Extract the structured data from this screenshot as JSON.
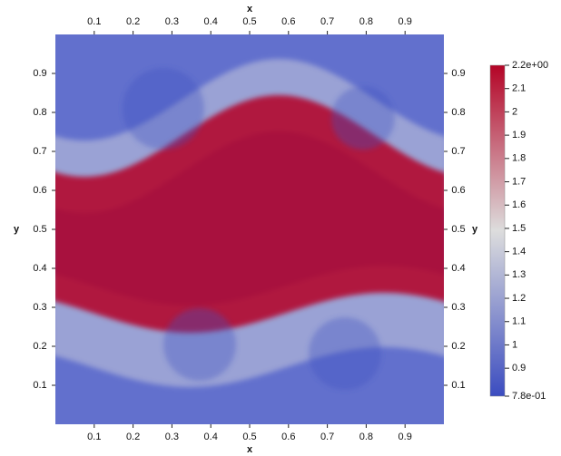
{
  "chart_data": {
    "type": "field",
    "xlabel": "x",
    "ylabel": "y",
    "xlim": [
      0,
      1
    ],
    "ylim": [
      0,
      1
    ],
    "xticks": [
      0.1,
      0.2,
      0.3,
      0.4,
      0.5,
      0.6,
      0.7,
      0.8,
      0.9
    ],
    "yticks": [
      0.1,
      0.2,
      0.3,
      0.4,
      0.5,
      0.6,
      0.7,
      0.8,
      0.9
    ],
    "colormap": [
      "#3b4cc0",
      "#dddddd",
      "#b40426"
    ],
    "colorbar": {
      "lim": [
        0.78,
        2.2
      ],
      "ticks": [
        {
          "value": 2.2,
          "label": "2.2e+00"
        },
        2.1,
        2,
        1.9,
        1.8,
        1.7,
        1.6,
        1.5,
        1.4,
        1.3,
        1.2,
        1.1,
        1,
        0.9,
        {
          "value": 0.78,
          "label": "7.8e-01"
        }
      ]
    }
  }
}
